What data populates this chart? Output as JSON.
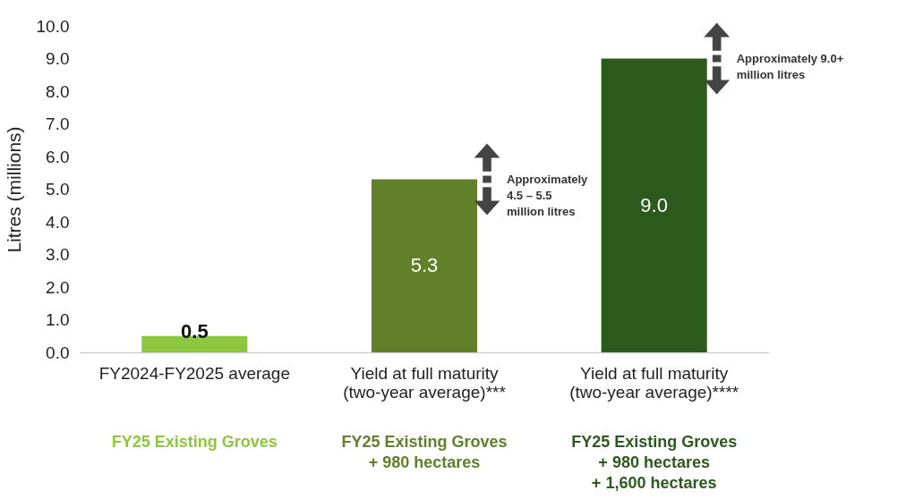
{
  "chart_data": {
    "type": "bar",
    "ylabel": "Litres (millions)",
    "categories": [
      "FY2024-FY2025 average",
      "Yield at full maturity\n(two-year average)***",
      "Yield at full maturity\n(two-year average)****"
    ],
    "values": [
      0.5,
      5.3,
      9.0
    ],
    "colors": [
      "#8dc63f",
      "#62802a",
      "#2c5a1c"
    ],
    "value_labels": [
      "0.5",
      "5.3",
      "9.0"
    ],
    "ylim": [
      0,
      10
    ],
    "yticks": [
      {
        "value": 0,
        "label": "0.0"
      },
      {
        "value": 1,
        "label": "1.0"
      },
      {
        "value": 2,
        "label": "2.0"
      },
      {
        "value": 3,
        "label": "3.0"
      },
      {
        "value": 4,
        "label": "4.0"
      },
      {
        "value": 5,
        "label": "5.0"
      },
      {
        "value": 6,
        "label": "6.0"
      },
      {
        "value": 7,
        "label": "7.0"
      },
      {
        "value": 8,
        "label": "8.0"
      },
      {
        "value": 9,
        "label": "9.0"
      },
      {
        "value": 10,
        "label": "10.0"
      }
    ],
    "grid": false,
    "legend": false,
    "annotations": [
      "Approximately\n4.5 – 5.5\nmillion litres",
      "Approximately 9.0+\nmillion litres",
      "FY25 Existing Groves",
      "FY25 Existing Groves\n+ 980 hectares",
      "FY25 Existing Groves\n+ 980 hectares\n+ 1,600 hectares"
    ]
  }
}
